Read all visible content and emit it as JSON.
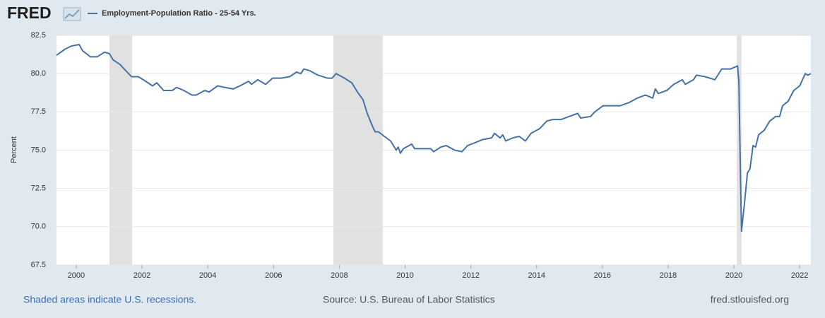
{
  "logo": "FRED",
  "chart_data": {
    "type": "line",
    "y_label": "Percent",
    "x": [
      1999.4,
      1999.66,
      1999.85,
      2000.09,
      2000.19,
      2000.43,
      2000.64,
      2000.86,
      2001.01,
      2001.12,
      2001.33,
      2001.46,
      2001.68,
      2001.89,
      2002.11,
      2002.32,
      2002.45,
      2002.66,
      2002.92,
      2003.05,
      2003.27,
      2003.52,
      2003.65,
      2003.91,
      2004.04,
      2004.3,
      2004.51,
      2004.77,
      2004.98,
      2005.24,
      2005.33,
      2005.52,
      2005.76,
      2005.97,
      2006.23,
      2006.49,
      2006.7,
      2006.83,
      2006.92,
      2007.09,
      2007.35,
      2007.65,
      2007.78,
      2007.9,
      2008.16,
      2008.38,
      2008.55,
      2008.72,
      2008.85,
      2009.02,
      2009.09,
      2009.19,
      2009.37,
      2009.56,
      2009.73,
      2009.79,
      2009.86,
      2009.95,
      2010.2,
      2010.29,
      2010.52,
      2010.78,
      2010.87,
      2011.08,
      2011.25,
      2011.51,
      2011.73,
      2011.9,
      2012.14,
      2012.37,
      2012.63,
      2012.72,
      2012.89,
      2012.97,
      2013.06,
      2013.27,
      2013.47,
      2013.66,
      2013.83,
      2014.09,
      2014.31,
      2014.48,
      2014.74,
      2014.99,
      2015.25,
      2015.34,
      2015.64,
      2015.77,
      2016.02,
      2016.28,
      2016.54,
      2016.8,
      2017.06,
      2017.31,
      2017.53,
      2017.61,
      2017.7,
      2017.96,
      2018.17,
      2018.43,
      2018.52,
      2018.77,
      2018.86,
      2019.12,
      2019.42,
      2019.63,
      2019.89,
      2020.11,
      2020.15,
      2020.23,
      2020.32,
      2020.41,
      2020.49,
      2020.58,
      2020.66,
      2020.75,
      2020.92,
      2021.09,
      2021.27,
      2021.39,
      2021.48,
      2021.65,
      2021.82,
      2022.0,
      2022.17,
      2022.25,
      2022.34
    ],
    "series": [
      {
        "name": "Employment-Population Ratio - 25-54 Yrs.",
        "color": "#4572a7",
        "values": [
          81.2,
          81.6,
          81.8,
          81.9,
          81.5,
          81.1,
          81.1,
          81.4,
          81.3,
          80.9,
          80.6,
          80.3,
          79.8,
          79.8,
          79.5,
          79.2,
          79.4,
          78.9,
          78.9,
          79.1,
          78.9,
          78.6,
          78.6,
          78.9,
          78.8,
          79.2,
          79.1,
          79.0,
          79.2,
          79.5,
          79.3,
          79.6,
          79.3,
          79.7,
          79.7,
          79.8,
          80.1,
          80.0,
          80.3,
          80.2,
          79.9,
          79.7,
          79.7,
          80.0,
          79.7,
          79.4,
          78.8,
          78.3,
          77.4,
          76.5,
          76.2,
          76.2,
          75.9,
          75.6,
          75.0,
          75.2,
          74.8,
          75.1,
          75.4,
          75.1,
          75.1,
          75.1,
          74.9,
          75.2,
          75.3,
          75.0,
          74.9,
          75.3,
          75.5,
          75.7,
          75.8,
          76.1,
          75.8,
          76.0,
          75.6,
          75.8,
          75.9,
          75.6,
          76.1,
          76.4,
          76.9,
          77.0,
          77.0,
          77.2,
          77.4,
          77.1,
          77.2,
          77.5,
          77.9,
          77.9,
          77.9,
          78.1,
          78.4,
          78.6,
          78.4,
          79.0,
          78.7,
          78.9,
          79.3,
          79.6,
          79.3,
          79.6,
          79.9,
          79.8,
          79.6,
          80.3,
          80.3,
          80.5,
          79.5,
          69.7,
          71.5,
          73.5,
          73.8,
          75.3,
          75.2,
          76.0,
          76.3,
          76.9,
          77.2,
          77.2,
          77.9,
          78.2,
          78.9,
          79.2,
          80.0,
          79.9,
          80.0
        ]
      }
    ],
    "recessions": [
      [
        2001.01,
        2001.7
      ],
      [
        2007.82,
        2009.32
      ],
      [
        2020.09,
        2020.23
      ]
    ],
    "recession_color": "#e1e1e1",
    "xlim": [
      1999.4,
      2022.34
    ],
    "xticks": [
      2000,
      2002,
      2004,
      2006,
      2008,
      2010,
      2012,
      2014,
      2016,
      2018,
      2020,
      2022
    ],
    "ylim": [
      67.5,
      82.5
    ],
    "yticks": [
      67.5,
      {
        "value": 70,
        "label": "70.0"
      },
      72.5,
      {
        "value": 75,
        "label": "75.0"
      },
      77.5,
      {
        "value": 80,
        "label": "80.0"
      },
      82.5
    ],
    "grid": true,
    "recession_note": "Shaded areas indicate U.S. recessions.",
    "source": "Source: U.S. Bureau of Labor Statistics",
    "site": "fred.stlouisfed.org"
  }
}
